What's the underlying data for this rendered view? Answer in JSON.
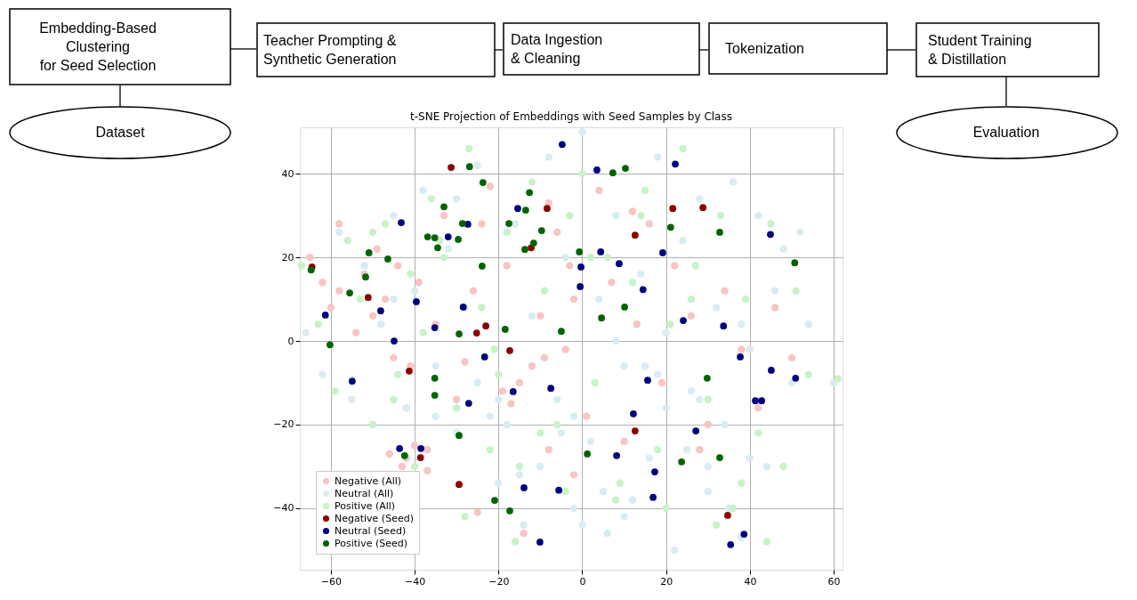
{
  "chart_data": [
    {
      "type": "other",
      "annotations": [
        "Dataset",
        "Embedding-Based\nClustering\nfor Seed Selection",
        "Teacher Prompting &\nSynthetic Generation",
        "Data Ingestion\n& Cleaning",
        "Tokenization",
        "Student Training\n& Distillation",
        "Evaluation"
      ]
    },
    {
      "type": "scatter",
      "title": "t-SNE Projection of Embeddings with Seed Samples by Class",
      "xlim": [
        -67.4,
        62.1
      ],
      "ylim": [
        -54.7,
        51.1
      ],
      "xticks": [
        -60,
        -40,
        -20,
        0,
        20,
        40,
        60
      ],
      "yticks": [
        -40,
        -20,
        0,
        20,
        40
      ],
      "grid": true,
      "legend": "bottom left",
      "marker": "circle",
      "series": [
        {
          "name": "Negative (All)",
          "color": "#f8c4c4",
          "x": [
            -65,
            -62,
            -60,
            -58,
            -58,
            -54,
            -52,
            -50,
            -49,
            -47,
            -45,
            -44,
            -42,
            -41,
            -39,
            -37,
            -35,
            -33,
            -30,
            -28,
            -26,
            -24,
            -22,
            -8,
            -19,
            -17,
            -15,
            -2,
            -12,
            -10,
            -8,
            -6,
            -4,
            -2,
            1,
            4,
            7,
            10,
            13,
            16,
            19,
            22,
            26,
            30,
            34,
            38,
            42,
            46,
            50,
            -46,
            -43,
            -40,
            -37,
            -25,
            -14,
            -18,
            -9,
            -3,
            12,
            28
          ],
          "values": [
            20,
            14,
            8,
            12,
            28,
            2,
            16,
            6,
            22,
            10,
            -4,
            18,
            -28,
            -6,
            14,
            -26,
            4,
            30,
            -14,
            -5,
            12,
            28,
            37,
            -26,
            -12,
            -15,
            -10,
            -32,
            -6,
            6,
            33,
            26,
            -2,
            10,
            -18,
            36,
            14,
            -24,
            4,
            28,
            -10,
            18,
            6,
            -20,
            12,
            -2,
            -16,
            8,
            -4,
            -27,
            -30,
            -25,
            -31,
            -41,
            -46,
            18,
            -4,
            18,
            31,
            -26
          ]
        },
        {
          "name": "Neutral (All)",
          "color": "#d8ecf2",
          "x": [
            -66,
            -62,
            -58,
            -55,
            -52,
            -50,
            -48,
            -45,
            -42,
            -40,
            -38,
            -35,
            -32,
            -30,
            -28,
            -25,
            -22,
            -20,
            -18,
            -16,
            -14,
            -12,
            -10,
            -8,
            -6,
            -4,
            -2,
            0,
            2,
            4,
            6,
            8,
            10,
            12,
            14,
            16,
            18,
            20,
            22,
            24,
            26,
            28,
            30,
            32,
            34,
            36,
            38,
            40,
            42,
            44,
            46,
            48,
            50,
            52,
            54,
            60,
            -15,
            -5,
            5,
            15,
            25,
            35,
            -25,
            -10,
            0,
            10,
            20,
            30,
            40,
            -35,
            -20,
            -2,
            8,
            18,
            28,
            38,
            -45,
            -30
          ],
          "values": [
            2,
            -8,
            26,
            -14,
            18,
            -20,
            4,
            30,
            -16,
            12,
            36,
            -6,
            22,
            -22,
            8,
            42,
            -18,
            -34,
            -20,
            28,
            -44,
            6,
            -30,
            44,
            -14,
            20,
            -40,
            50,
            -24,
            10,
            -46,
            30,
            -6,
            -38,
            16,
            -28,
            44,
            2,
            -50,
            24,
            -12,
            34,
            -36,
            8,
            -20,
            38,
            -47,
            -2,
            30,
            -30,
            12,
            22,
            -10,
            26,
            4,
            -10,
            -32,
            -22,
            -36,
            -6,
            -26,
            -40,
            -10,
            -30,
            -44,
            -42,
            -16,
            -30,
            -28,
            -18,
            -14,
            -18,
            0,
            -8,
            -14,
            4,
            10,
            34
          ]
        },
        {
          "name": "Positive (All)",
          "color": "#c8f2c8",
          "x": [
            -67,
            -63,
            -59,
            -56,
            -53,
            -50,
            -47,
            -44,
            -41,
            -38,
            -36,
            -33,
            -30,
            -27,
            -24,
            -21,
            -18,
            -15,
            -12,
            -9,
            -6,
            -3,
            0,
            3,
            6,
            9,
            12,
            15,
            18,
            21,
            24,
            27,
            30,
            33,
            36,
            39,
            42,
            45,
            48,
            51,
            54,
            61,
            -40,
            -28,
            -16,
            -4,
            8,
            20,
            32,
            44,
            -50,
            -34,
            -22,
            -10,
            2,
            14,
            26,
            38,
            -45,
            -20
          ],
          "values": [
            18,
            4,
            -12,
            24,
            10,
            -20,
            28,
            -8,
            16,
            2,
            34,
            20,
            -16,
            46,
            8,
            -2,
            26,
            -30,
            38,
            12,
            -20,
            30,
            40,
            -10,
            20,
            -34,
            14,
            36,
            -26,
            4,
            46,
            18,
            -14,
            30,
            -40,
            10,
            -22,
            28,
            -30,
            12,
            -8,
            -9,
            -30,
            -42,
            -48,
            -36,
            -38,
            -40,
            -44,
            -48,
            26,
            24,
            -26,
            -22,
            20,
            30,
            10,
            -34,
            -14,
            -8
          ]
        },
        {
          "name": "Negative (Seed)",
          "color": "#8b0000",
          "x": [
            -31.3,
            -8.4,
            -12.2,
            -64.5,
            -51.1,
            -23.0,
            -25.2,
            21.6,
            28.8,
            12.6,
            -41.3,
            -17.3,
            -38.6,
            -29.4,
            12.6,
            34.7
          ],
          "values": [
            41.5,
            31.7,
            22.3,
            17.7,
            10.4,
            3.6,
            1.9,
            31.7,
            31.9,
            25.3,
            -7.2,
            -2.3,
            -27.9,
            -34.3,
            -21.5,
            -41.7
          ]
        },
        {
          "name": "Neutral (Seed)",
          "color": "#000080",
          "x": [
            -4.8,
            -43.2,
            -15.4,
            -32.0,
            -27.3,
            -61.3,
            -48.1,
            -39.6,
            -28.4,
            -35.2,
            -44.9,
            3.5,
            22.2,
            44.9,
            4.4,
            19.2,
            -0.3,
            -0.5,
            8.8,
            14.5,
            24.1,
            33.7,
            -54.9,
            -23.3,
            -16.5,
            -7.5,
            -27.1,
            -43.6,
            -38.5,
            -13.9,
            -5.6,
            -10.1,
            37.7,
            45.1,
            50.9,
            41.3,
            42.8,
            15.6,
            12.2,
            27.1,
            8.2,
            17.3,
            16.9,
            38.6,
            35.4
          ],
          "values": [
            47.0,
            28.3,
            31.7,
            24.9,
            27.9,
            6.2,
            7.2,
            9.4,
            8.1,
            3.2,
            0.0,
            40.9,
            42.3,
            25.5,
            21.3,
            21.1,
            17.7,
            13.0,
            18.5,
            12.3,
            4.9,
            3.6,
            -9.6,
            -3.8,
            -12.1,
            -11.3,
            -14.9,
            -25.7,
            -25.7,
            -35.1,
            -35.7,
            -48.1,
            -3.8,
            -7.0,
            -8.9,
            -14.3,
            -14.3,
            -9.4,
            -17.4,
            -21.5,
            -27.4,
            -31.3,
            -37.4,
            -46.2,
            -48.7
          ]
        },
        {
          "name": "Positive (Seed)",
          "color": "#006400",
          "x": [
            -26.9,
            -23.7,
            -12.6,
            -33.0,
            -13.5,
            -17.5,
            -28.6,
            -9.7,
            -36.9,
            -35.2,
            -29.6,
            -34.5,
            -11.6,
            -13.7,
            -50.9,
            -46.4,
            -23.9,
            -64.7,
            -51.7,
            -55.5,
            -18.4,
            -29.4,
            -5.0,
            -60.2,
            7.3,
            10.3,
            21.1,
            32.8,
            -0.7,
            50.7,
            10.1,
            4.6,
            -35.2,
            -35.2,
            -29.4,
            -42.4,
            -20.9,
            -17.3,
            1.2,
            29.8,
            23.7,
            32.8
          ],
          "values": [
            41.7,
            37.9,
            35.5,
            32.1,
            31.3,
            28.1,
            28.1,
            26.4,
            24.9,
            24.7,
            24.3,
            22.3,
            23.4,
            21.9,
            21.1,
            19.6,
            17.9,
            17.0,
            15.3,
            11.5,
            2.8,
            1.7,
            2.3,
            -0.9,
            40.2,
            41.3,
            27.2,
            26.0,
            21.3,
            18.7,
            8.1,
            5.5,
            -8.9,
            -13.0,
            -22.6,
            -27.4,
            -38.1,
            -40.6,
            -27.0,
            -8.9,
            -28.9,
            -27.9
          ]
        }
      ]
    }
  ]
}
